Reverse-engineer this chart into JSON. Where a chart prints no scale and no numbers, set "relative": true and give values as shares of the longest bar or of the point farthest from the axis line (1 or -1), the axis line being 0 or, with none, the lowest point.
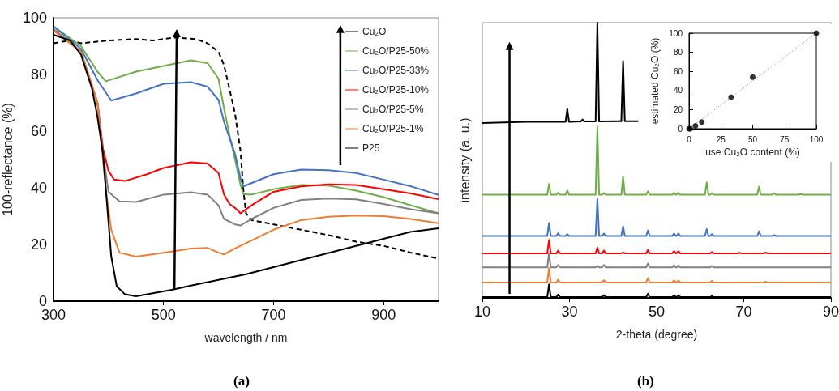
{
  "chart_data": [
    {
      "type": "line",
      "xlabel": "wavelength / nm",
      "ylabel": "100-reflectance (%)",
      "xlim": [
        300,
        1000
      ],
      "xticks": [
        300,
        500,
        700,
        900
      ],
      "ylim": [
        0,
        100
      ],
      "yticks": [
        0,
        20,
        40,
        60,
        80,
        100
      ],
      "legend": "top right",
      "annotations": [
        "(a)"
      ],
      "series": [
        {
          "name": "Cu₂O",
          "color": "#000000",
          "line_style": "dashed",
          "x": [
            300,
            330,
            350,
            400,
            450,
            480,
            520,
            560,
            580,
            600,
            610,
            620,
            630,
            640,
            645,
            650,
            660,
            700,
            750,
            800,
            850,
            900,
            950,
            1000
          ],
          "values": [
            91,
            92,
            91,
            92,
            92.5,
            92,
            93,
            92.5,
            91,
            88,
            83.3,
            74.8,
            66.2,
            52.9,
            39.5,
            31,
            28.6,
            27.1,
            25.2,
            23.3,
            21,
            19.5,
            17.1,
            15
          ]
        },
        {
          "name": "Cu₂O/P25-50%",
          "color": "#70ad47",
          "x": [
            300,
            350,
            380,
            395,
            450,
            500,
            550,
            580,
            600,
            610,
            620,
            630,
            640,
            645,
            660,
            700,
            750,
            800,
            850,
            900,
            950,
            1000
          ],
          "values": [
            97,
            90,
            81,
            77.6,
            81,
            83,
            85,
            84,
            78.5,
            68,
            58.5,
            50,
            41,
            37.8,
            37.6,
            39.5,
            41,
            40.8,
            39,
            36.7,
            33.8,
            31
          ]
        },
        {
          "name": "Cu₂O/P25-33%",
          "color": "#4472c4",
          "x": [
            300,
            350,
            380,
            405,
            450,
            500,
            550,
            580,
            600,
            610,
            620,
            630,
            640,
            645,
            700,
            750,
            800,
            850,
            900,
            950,
            1000
          ],
          "values": [
            97,
            89,
            78,
            70.8,
            73.3,
            76.7,
            77.3,
            75.7,
            71,
            63.3,
            57.6,
            52,
            43.3,
            40.5,
            44.8,
            46.4,
            46.2,
            45.2,
            42.9,
            40.5,
            37.5
          ]
        },
        {
          "name": "Cu₂O/P25-10%",
          "color": "#ff0000",
          "x": [
            300,
            350,
            380,
            390,
            400,
            410,
            430,
            470,
            500,
            550,
            580,
            600,
            610,
            620,
            630,
            640,
            660,
            700,
            750,
            800,
            850,
            900,
            950,
            1000
          ],
          "values": [
            96,
            88,
            70,
            53.8,
            46,
            42.9,
            42.4,
            44.8,
            47,
            49,
            48.6,
            45.2,
            37.6,
            34.3,
            32.9,
            31,
            33.8,
            38.6,
            40.5,
            41.2,
            41,
            39.5,
            38,
            36
          ]
        },
        {
          "name": "Cu₂O/P25-5%",
          "color": "#808080",
          "x": [
            300,
            350,
            380,
            390,
            400,
            420,
            450,
            500,
            550,
            580,
            600,
            610,
            630,
            640,
            660,
            700,
            750,
            800,
            850,
            900,
            950,
            1000
          ],
          "values": [
            96,
            88,
            70,
            52,
            38.6,
            35.2,
            35,
            37.6,
            38.4,
            37.6,
            33.8,
            29,
            27.1,
            26.7,
            29,
            32.9,
            35.7,
            36.2,
            35.9,
            34.3,
            32.4,
            31
          ]
        },
        {
          "name": "Cu₂O/P25-1%",
          "color": "#ed7d31",
          "x": [
            300,
            350,
            380,
            395,
            405,
            420,
            450,
            500,
            550,
            580,
            600,
            610,
            630,
            660,
            700,
            750,
            800,
            850,
            900,
            950,
            1000
          ],
          "values": [
            95.5,
            88,
            70,
            39.5,
            25.2,
            17.1,
            15.7,
            17.1,
            18.6,
            18.8,
            17.1,
            16.5,
            18.6,
            21.4,
            25.2,
            28.6,
            29.8,
            30.2,
            30,
            29,
            27.5
          ]
        },
        {
          "name": "P25",
          "color": "#000000",
          "x": [
            300,
            330,
            350,
            370,
            380,
            390,
            405,
            415,
            430,
            450,
            515,
            550,
            600,
            650,
            700,
            750,
            800,
            850,
            900,
            950,
            1000
          ],
          "values": [
            94,
            92,
            87,
            75,
            65,
            52,
            15.7,
            5.2,
            2.4,
            1.7,
            4,
            5.5,
            7.5,
            9.5,
            12,
            14.5,
            17,
            19.5,
            22,
            24.5,
            25.7
          ]
        }
      ]
    },
    {
      "type": "line",
      "relative": true,
      "xlabel": "2-theta (degree)",
      "ylabel": "intensity (a. u.)",
      "xlim": [
        10,
        90
      ],
      "xticks": [
        10,
        30,
        50,
        70,
        90
      ],
      "annotations": [
        "(b)"
      ],
      "series": [
        {
          "color": "#000000",
          "x": [
            10,
            20,
            29.1,
            29.5,
            29.9,
            32.6,
            33,
            33.4,
            36,
            36.4,
            36.8,
            41.9,
            42.3,
            42.7,
            45.8
          ],
          "values": [
            0.635,
            0.64,
            0.64,
            0.686,
            0.64,
            0.641,
            0.648,
            0.641,
            0.641,
            1,
            0.641,
            0.642,
            0.86,
            0.642,
            0.642
          ]
        },
        {
          "color": "#70ad47",
          "x": [
            10,
            24.9,
            25.3,
            25.7,
            27,
            27.4,
            27.8,
            29.1,
            29.5,
            29.9,
            36,
            36.4,
            36.8,
            37.5,
            37.9,
            38.3,
            41.9,
            42.3,
            42.7,
            47.6,
            48,
            48.4,
            53.6,
            54,
            54.4,
            54.6,
            55,
            55.4,
            61.1,
            61.5,
            61.9,
            62.3,
            62.7,
            63.1,
            73.1,
            73.5,
            73.9,
            76.6,
            77,
            77.4,
            82.6,
            83,
            83.4,
            90
          ],
          "values": [
            0.375,
            0.375,
            0.414,
            0.375,
            0.375,
            0.382,
            0.375,
            0.375,
            0.39,
            0.375,
            0.375,
            0.623,
            0.375,
            0.375,
            0.381,
            0.375,
            0.375,
            0.441,
            0.375,
            0.375,
            0.387,
            0.375,
            0.375,
            0.382,
            0.375,
            0.375,
            0.382,
            0.375,
            0.375,
            0.42,
            0.375,
            0.375,
            0.38,
            0.375,
            0.375,
            0.404,
            0.375,
            0.375,
            0.38,
            0.375,
            0.375,
            0.378,
            0.375,
            0.375
          ]
        },
        {
          "color": "#4472c4",
          "x": [
            10,
            24.9,
            25.3,
            25.7,
            27,
            27.4,
            27.8,
            29.1,
            29.5,
            29.9,
            36,
            36.4,
            36.8,
            37.5,
            37.9,
            38.3,
            41.9,
            42.3,
            42.7,
            47.6,
            48,
            48.4,
            53.6,
            54,
            54.4,
            54.6,
            55,
            55.4,
            61.1,
            61.5,
            61.9,
            62.3,
            62.7,
            63.1,
            73.1,
            73.5,
            73.9,
            76.6,
            77,
            77.4,
            90
          ],
          "values": [
            0.225,
            0.225,
            0.272,
            0.225,
            0.225,
            0.235,
            0.225,
            0.225,
            0.232,
            0.225,
            0.225,
            0.36,
            0.225,
            0.225,
            0.234,
            0.225,
            0.225,
            0.26,
            0.225,
            0.225,
            0.245,
            0.225,
            0.225,
            0.234,
            0.225,
            0.225,
            0.234,
            0.225,
            0.225,
            0.25,
            0.225,
            0.225,
            0.232,
            0.225,
            0.225,
            0.242,
            0.225,
            0.225,
            0.228,
            0.225,
            0.225
          ]
        },
        {
          "color": "#ff0000",
          "x": [
            10,
            24.9,
            25.3,
            25.7,
            27,
            27.4,
            27.8,
            36,
            36.4,
            36.8,
            37.5,
            37.9,
            38.3,
            41.9,
            42.3,
            42.7,
            47.6,
            48,
            48.4,
            53.6,
            54,
            54.4,
            54.6,
            55,
            55.4,
            62.3,
            62.7,
            63.1,
            68.6,
            69,
            69.4,
            74.6,
            75,
            75.4,
            90
          ],
          "values": [
            0.162,
            0.162,
            0.211,
            0.162,
            0.162,
            0.172,
            0.162,
            0.162,
            0.183,
            0.162,
            0.162,
            0.172,
            0.162,
            0.162,
            0.165,
            0.162,
            0.162,
            0.174,
            0.162,
            0.162,
            0.17,
            0.162,
            0.162,
            0.17,
            0.162,
            0.162,
            0.167,
            0.162,
            0.162,
            0.164,
            0.162,
            0.162,
            0.165,
            0.162,
            0.162
          ]
        },
        {
          "color": "#808080",
          "x": [
            10,
            24.9,
            25.3,
            25.7,
            27,
            27.4,
            27.8,
            36,
            36.4,
            36.8,
            37.5,
            37.9,
            38.3,
            47.6,
            48,
            48.4,
            53.6,
            54,
            54.4,
            54.6,
            55,
            55.4,
            62.3,
            62.7,
            63.1,
            90
          ],
          "values": [
            0.111,
            0.111,
            0.162,
            0.111,
            0.111,
            0.12,
            0.111,
            0.111,
            0.117,
            0.111,
            0.111,
            0.12,
            0.111,
            0.111,
            0.125,
            0.111,
            0.111,
            0.119,
            0.111,
            0.111,
            0.118,
            0.111,
            0.111,
            0.116,
            0.111,
            0.111
          ]
        },
        {
          "color": "#ed7d31",
          "x": [
            10,
            24.9,
            25.3,
            25.7,
            27,
            27.4,
            27.8,
            37.5,
            37.9,
            38.3,
            47.6,
            48,
            48.4,
            53.6,
            54,
            54.4,
            54.6,
            55,
            55.4,
            62.3,
            62.7,
            63.1,
            74.6,
            75,
            75.4,
            90
          ],
          "values": [
            0.056,
            0.056,
            0.108,
            0.056,
            0.056,
            0.066,
            0.056,
            0.056,
            0.064,
            0.056,
            0.056,
            0.072,
            0.056,
            0.056,
            0.064,
            0.056,
            0.056,
            0.063,
            0.056,
            0.056,
            0.062,
            0.056,
            0.056,
            0.059,
            0.056,
            0.056
          ]
        },
        {
          "color": "#000000",
          "x": [
            10,
            24.9,
            25.3,
            25.7,
            27,
            27.4,
            27.8,
            37.5,
            37.9,
            38.3,
            47.6,
            48,
            48.4,
            53.6,
            54,
            54.4,
            54.6,
            55,
            55.4,
            62.3,
            62.7,
            63.1,
            90
          ],
          "values": [
            0.003,
            0.003,
            0.049,
            0.003,
            0.003,
            0.012,
            0.003,
            0.003,
            0.01,
            0.003,
            0.003,
            0.015,
            0.003,
            0.003,
            0.01,
            0.003,
            0.003,
            0.01,
            0.003,
            0.003,
            0.007,
            0.003,
            0.003
          ]
        }
      ]
    },
    {
      "type": "scatter",
      "xlabel": "use Cu₂O content (%)",
      "ylabel": "estimated Cu₂O (%)",
      "xlim": [
        0,
        100
      ],
      "xticks": [
        0,
        25,
        50,
        75,
        100
      ],
      "ylim": [
        0,
        100
      ],
      "yticks": [
        0,
        20,
        40,
        60,
        80,
        100
      ],
      "series": [
        {
          "color": "#000000",
          "marker": "circle",
          "x": [
            0,
            1,
            5,
            10,
            33,
            50,
            100
          ],
          "values": [
            0,
            0,
            3,
            7,
            33,
            54,
            100
          ]
        },
        {
          "type": "line",
          "color": "#808080",
          "line_style": "dotted",
          "x": [
            0,
            100
          ],
          "values": [
            0,
            100
          ]
        }
      ]
    }
  ]
}
